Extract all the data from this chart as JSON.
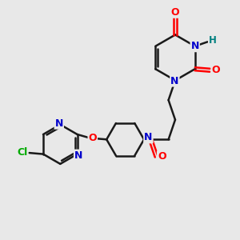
{
  "bg_color": "#e8e8e8",
  "atom_colors": {
    "N": "#0000cc",
    "O": "#ff0000",
    "Cl": "#00aa00",
    "H": "#008080"
  },
  "bond_color": "#1a1a1a",
  "bond_width": 1.8,
  "figsize": [
    3.0,
    3.0
  ],
  "dpi": 100,
  "xlim": [
    0,
    10
  ],
  "ylim": [
    0,
    10
  ]
}
